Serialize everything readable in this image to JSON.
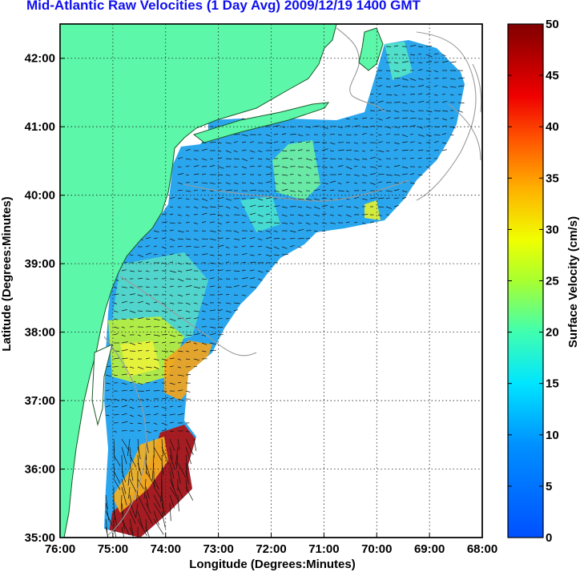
{
  "title": "Mid-Atlantic Raw Velocities (1 Day Avg) 2009/12/19 1400 GMT",
  "map": {
    "x_label": "Longitude (Degrees:Minutes)",
    "y_label": "Latitude (Degrees:Minutes)",
    "x_ticks": [
      "76:00",
      "75:00",
      "74:00",
      "73:00",
      "72:00",
      "71:00",
      "70:00",
      "69:00",
      "68:00"
    ],
    "y_ticks": [
      "42:00",
      "41:00",
      "40:00",
      "39:00",
      "38:00",
      "37:00",
      "36:00",
      "35:00"
    ],
    "lon_range": [
      -76,
      -68
    ],
    "lat_range": [
      35,
      42.5
    ],
    "colors": {
      "land": "#5cf7a8",
      "coast": "#1a5a2a",
      "bathymetry": "#9a9a9a",
      "grid": "#222222",
      "arrows": "#111111"
    }
  },
  "colorbar": {
    "label": "Surface Velocity (cm/s)",
    "ticks": [
      "0",
      "5",
      "10",
      "15",
      "20",
      "25",
      "30",
      "35",
      "40",
      "45",
      "50"
    ],
    "range": [
      0,
      50
    ],
    "colormap": "jet"
  }
}
